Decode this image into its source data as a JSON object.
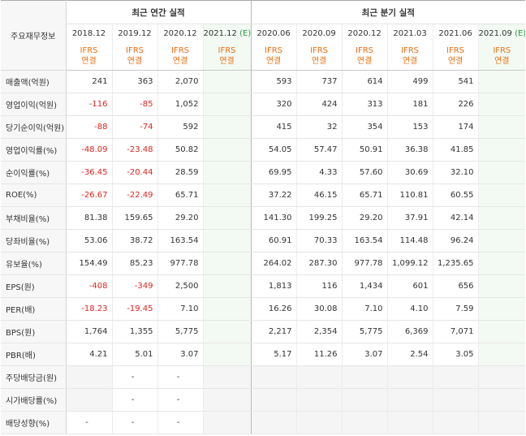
{
  "header": {
    "row_label_title": "주요재무정보",
    "annual_title": "최근 연간 실적",
    "quarterly_title": "최근 분기 실적",
    "estimate_mark": "(E)",
    "annual_periods": [
      "2018.12",
      "2019.12",
      "2020.12",
      "2021.12"
    ],
    "quarterly_periods": [
      "2020.06",
      "2020.09",
      "2020.12",
      "2021.03",
      "2021.06",
      "2021.09"
    ],
    "acct_line1": "IFRS",
    "acct_line2": "연결"
  },
  "rows": [
    {
      "label": "매출액(억원)",
      "annual": [
        "241",
        "363",
        "2,070",
        ""
      ],
      "quarterly": [
        "593",
        "737",
        "614",
        "499",
        "541",
        ""
      ]
    },
    {
      "label": "영업이익(억원)",
      "annual": [
        "-116",
        "-85",
        "1,052",
        ""
      ],
      "quarterly": [
        "320",
        "424",
        "313",
        "181",
        "226",
        ""
      ]
    },
    {
      "label": "당기순이익(억원)",
      "annual": [
        "-88",
        "-74",
        "592",
        ""
      ],
      "quarterly": [
        "415",
        "32",
        "354",
        "153",
        "174",
        ""
      ]
    },
    {
      "label": "영업이익률(%)",
      "annual": [
        "-48.09",
        "-23.48",
        "50.82",
        ""
      ],
      "quarterly": [
        "54.05",
        "57.47",
        "50.91",
        "36.38",
        "41.85",
        ""
      ]
    },
    {
      "label": "순이익률(%)",
      "annual": [
        "-36.45",
        "-20.44",
        "28.59",
        ""
      ],
      "quarterly": [
        "69.95",
        "4.33",
        "57.60",
        "30.69",
        "32.10",
        ""
      ]
    },
    {
      "label": "ROE(%)",
      "annual": [
        "-26.67",
        "-22.49",
        "65.71",
        ""
      ],
      "quarterly": [
        "37.22",
        "46.15",
        "65.71",
        "110.81",
        "60.55",
        ""
      ]
    },
    {
      "label": "부채비율(%)",
      "annual": [
        "81.38",
        "159.65",
        "29.20",
        ""
      ],
      "quarterly": [
        "141.30",
        "199.25",
        "29.20",
        "37.91",
        "42.14",
        ""
      ]
    },
    {
      "label": "당좌비율(%)",
      "annual": [
        "53.06",
        "38.72",
        "163.54",
        ""
      ],
      "quarterly": [
        "60.91",
        "70.33",
        "163.54",
        "114.48",
        "96.24",
        ""
      ]
    },
    {
      "label": "유보율(%)",
      "annual": [
        "154.49",
        "85.23",
        "977.78",
        ""
      ],
      "quarterly": [
        "264.02",
        "287.30",
        "977.78",
        "1,099.12",
        "1,235.65",
        ""
      ]
    },
    {
      "label": "EPS(원)",
      "annual": [
        "-408",
        "-349",
        "2,500",
        ""
      ],
      "quarterly": [
        "1,813",
        "116",
        "1,434",
        "601",
        "656",
        ""
      ]
    },
    {
      "label": "PER(배)",
      "annual": [
        "-18.23",
        "-19.45",
        "7.10",
        ""
      ],
      "quarterly": [
        "16.26",
        "30.08",
        "7.10",
        "4.10",
        "7.59",
        ""
      ]
    },
    {
      "label": "BPS(원)",
      "annual": [
        "1,764",
        "1,355",
        "5,775",
        ""
      ],
      "quarterly": [
        "2,217",
        "2,354",
        "5,775",
        "6,369",
        "7,071",
        ""
      ]
    },
    {
      "label": "PBR(배)",
      "annual": [
        "4.21",
        "5.01",
        "3.07",
        ""
      ],
      "quarterly": [
        "5.17",
        "11.26",
        "3.07",
        "2.54",
        "3.05",
        ""
      ]
    },
    {
      "label": "주당배당금(원)",
      "annual": [
        "",
        "-",
        "-",
        ""
      ],
      "quarterly": [
        "",
        "",
        "",
        "",
        "",
        ""
      ]
    },
    {
      "label": "시가배당률(%)",
      "annual": [
        "",
        "-",
        "-",
        ""
      ],
      "quarterly": [
        "",
        "",
        "",
        "",
        "",
        ""
      ]
    },
    {
      "label": "배당성향(%)",
      "annual": [
        "-",
        "-",
        "-",
        ""
      ],
      "quarterly": [
        "",
        "",
        "",
        "",
        "",
        ""
      ]
    }
  ],
  "colors": {
    "negative": "#e0231e",
    "estimate": "#2e9c4a",
    "accounting": "#ee6f12",
    "estimate_bg": "#f3faf3",
    "empty_bg": "#f5f5f5"
  }
}
